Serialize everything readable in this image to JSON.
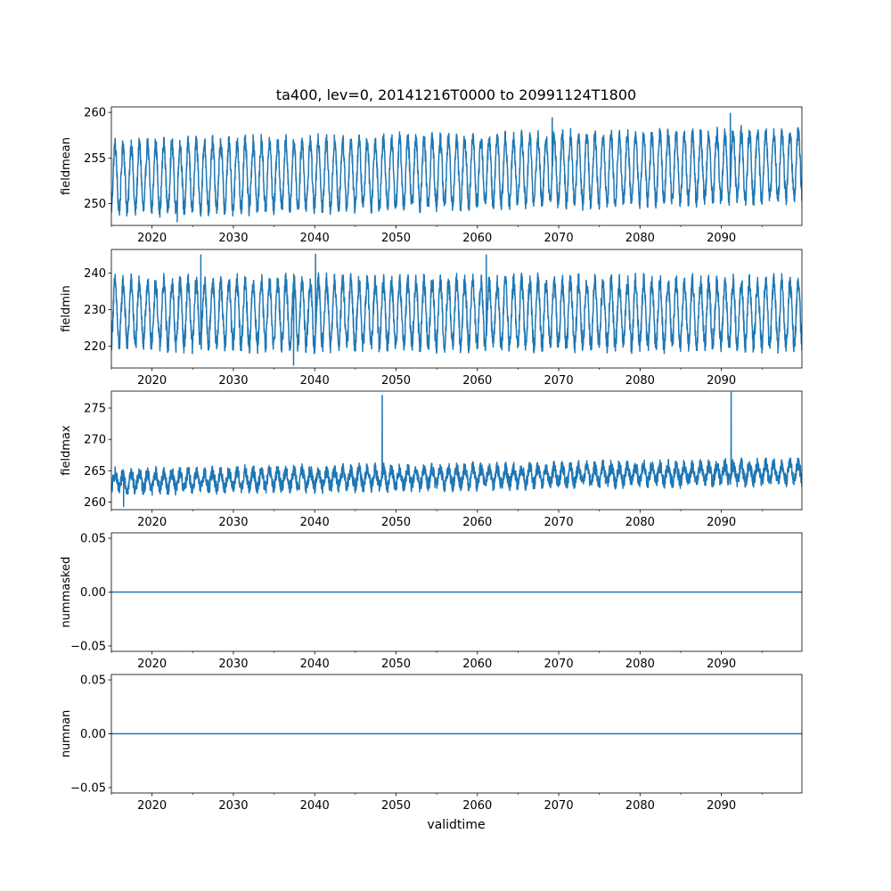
{
  "title": "ta400, lev=0, 20141216T0000 to 20991124T1800",
  "xlabel": "validtime",
  "x_range": [
    2015.0,
    2099.9
  ],
  "x_ticks": [
    2020,
    2030,
    2040,
    2050,
    2060,
    2070,
    2080,
    2090
  ],
  "x_tick_labels": [
    "2020",
    "2030",
    "2040",
    "2050",
    "2060",
    "2070",
    "2080",
    "2090"
  ],
  "series_color": "#1f77b4",
  "chart_data": [
    {
      "type": "line",
      "ylabel": "fieldmean",
      "ylim": [
        247.6,
        260.6
      ],
      "y_ticks": [
        250,
        255,
        260
      ],
      "y_tick_labels": [
        "250",
        "255",
        "260"
      ],
      "trend_start": 252.8,
      "trend_end": 254.2,
      "seasonal_amplitude": 3.6,
      "noise": 0.9,
      "typical_range": [
        248.5,
        259.5
      ],
      "peaks": [
        [
          2069.2,
          259.4
        ],
        [
          2091.1,
          259.9
        ]
      ],
      "troughs": [
        [
          2023.1,
          248.0
        ]
      ]
    },
    {
      "type": "line",
      "ylabel": "fieldmin",
      "ylim": [
        214.0,
        246.5
      ],
      "y_ticks": [
        220,
        230,
        240
      ],
      "y_tick_labels": [
        "220",
        "230",
        "240"
      ],
      "trend_start": 229.0,
      "trend_end": 229.0,
      "seasonal_amplitude": 8.5,
      "noise": 2.6,
      "typical_range": [
        215.0,
        245.0
      ],
      "peaks": [
        [
          2026.0,
          245.0
        ],
        [
          2040.1,
          245.2
        ],
        [
          2061.1,
          245.0
        ]
      ],
      "troughs": [
        [
          2037.4,
          214.8
        ]
      ]
    },
    {
      "type": "line",
      "ylabel": "fieldmax",
      "ylim": [
        258.8,
        277.7
      ],
      "y_ticks": [
        260,
        265,
        270,
        275
      ],
      "y_tick_labels": [
        "260",
        "265",
        "270",
        "275"
      ],
      "trend_start": 263.3,
      "trend_end": 264.8,
      "seasonal_amplitude": 1.3,
      "noise": 1.1,
      "typical_range": [
        259.5,
        274.0
      ],
      "peaks": [
        [
          2048.3,
          277.0
        ],
        [
          2091.2,
          277.5
        ]
      ],
      "troughs": [
        [
          2016.5,
          259.3
        ]
      ]
    },
    {
      "type": "line",
      "ylabel": "nummasked",
      "ylim": [
        -0.055,
        0.055
      ],
      "y_ticks": [
        -0.05,
        0.0,
        0.05
      ],
      "y_tick_labels": [
        "−0.05",
        "0.00",
        "0.05"
      ],
      "constant": 0.0
    },
    {
      "type": "line",
      "ylabel": "numnan",
      "ylim": [
        -0.055,
        0.055
      ],
      "y_ticks": [
        -0.05,
        0.0,
        0.05
      ],
      "y_tick_labels": [
        "−0.05",
        "0.00",
        "0.05"
      ],
      "constant": 0.0
    }
  ]
}
